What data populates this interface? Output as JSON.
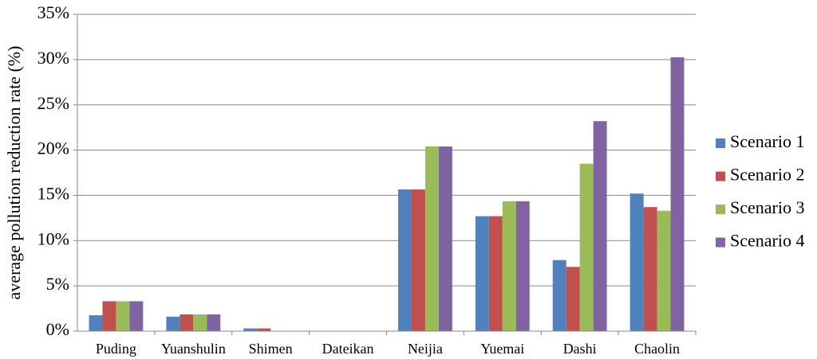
{
  "chart_data": {
    "type": "bar",
    "y_label": "average pollution reduction rate (%)",
    "categories": [
      "Puding",
      "Yuanshulin",
      "Shimen",
      "Dateikan",
      "Neijia",
      "Yuemai",
      "Dashi",
      "Chaolin"
    ],
    "series": [
      {
        "name": "Scenario 1",
        "color": "#4f81bd",
        "values": [
          1.75,
          1.6,
          0.3,
          0,
          15.65,
          12.7,
          7.85,
          15.2
        ]
      },
      {
        "name": "Scenario 2",
        "color": "#c0504d",
        "values": [
          3.3,
          1.85,
          0.3,
          0,
          15.65,
          12.7,
          7.1,
          13.7
        ]
      },
      {
        "name": "Scenario 3",
        "color": "#9bbb59",
        "values": [
          3.3,
          1.85,
          0,
          0,
          20.4,
          14.35,
          18.5,
          13.3
        ]
      },
      {
        "name": "Scenario 4",
        "color": "#8064a2",
        "values": [
          3.3,
          1.85,
          0,
          0,
          20.4,
          14.35,
          23.2,
          30.25
        ]
      }
    ],
    "ylim": [
      0,
      35
    ],
    "yticks": [
      {
        "value": 0,
        "label": "0%"
      },
      {
        "value": 5,
        "label": "5%"
      },
      {
        "value": 10,
        "label": "10%"
      },
      {
        "value": 15,
        "label": "15%"
      },
      {
        "value": 20,
        "label": "20%"
      },
      {
        "value": 25,
        "label": "25%"
      },
      {
        "value": 30,
        "label": "30%"
      },
      {
        "value": 35,
        "label": "35%"
      }
    ],
    "grid": true,
    "legend": "right"
  }
}
